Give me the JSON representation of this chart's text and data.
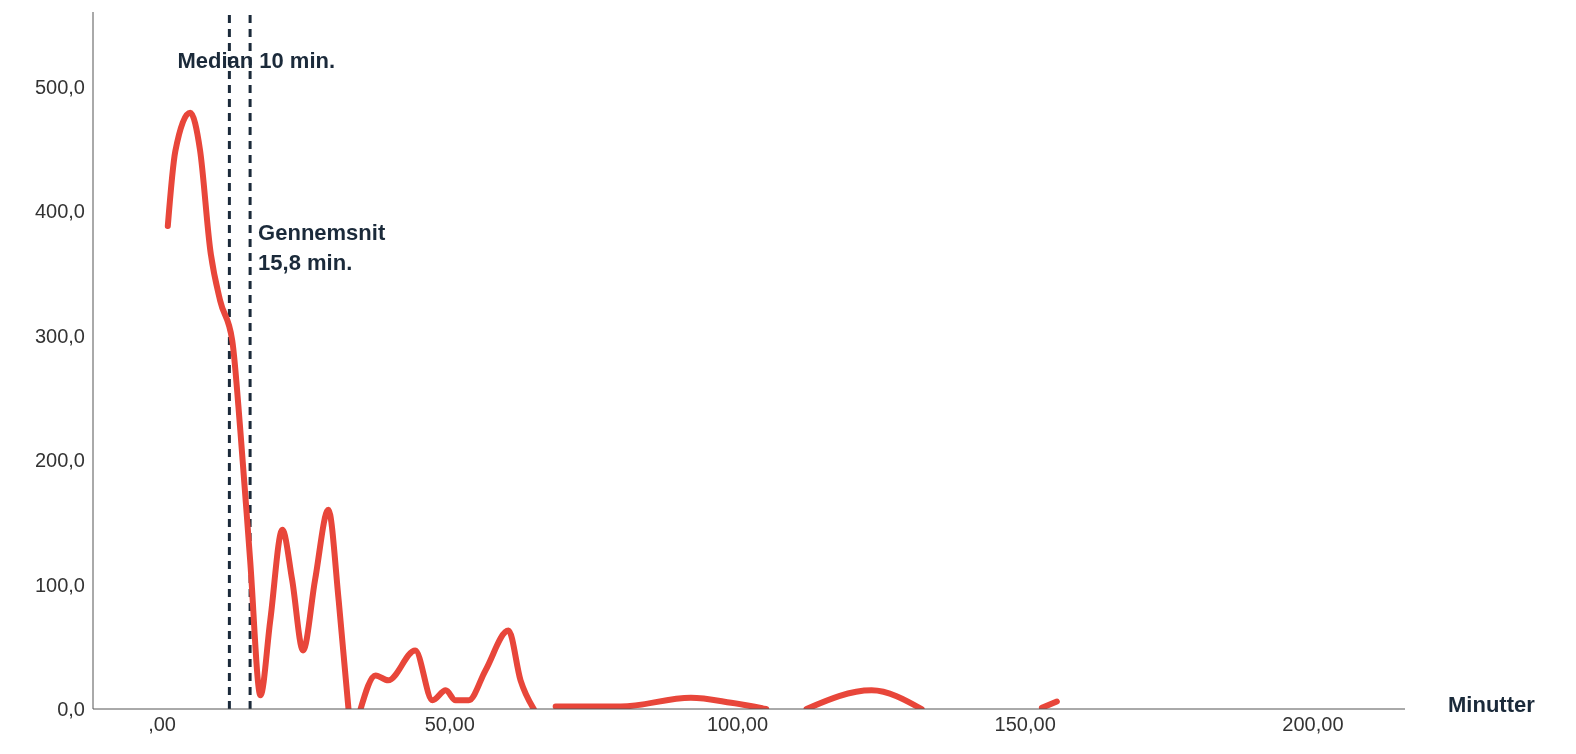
{
  "chart_data": {
    "type": "line",
    "xlabel": "Minutter",
    "x": [
      1.0,
      2.3,
      4.9,
      6.6,
      8.4,
      10.1,
      12.2,
      13.6,
      15.3,
      17.1,
      18.8,
      20.9,
      22.6,
      24.5,
      26.6,
      28.9,
      30.7,
      32.4,
      33.5,
      34.5,
      37.1,
      39.3,
      44,
      47,
      49.3,
      51,
      53.3,
      56.2,
      60.2,
      62.3,
      64.6,
      66.5,
      68.4,
      72.8,
      79.7,
      91.9,
      98.9,
      105,
      108.5,
      112,
      123.3,
      132,
      142,
      152.9,
      155.5
    ],
    "series": [
      {
        "color": "#e8463a",
        "values": [
          388,
          448,
          479,
          449,
          368,
          328,
          296,
          224,
          120,
          11,
          71,
          144,
          104,
          47,
          104,
          160,
          87,
          0,
          null,
          0,
          27,
          23,
          47,
          7,
          15,
          7,
          7,
          31,
          63,
          23,
          0,
          null,
          2,
          2,
          2,
          9,
          5,
          0,
          null,
          0,
          15,
          0,
          null,
          1,
          6
        ]
      }
    ],
    "xlim": [
      -12,
      216
    ],
    "ylim": [
      0,
      560
    ],
    "xticks": [
      {
        "value": 0,
        "label": ",00"
      },
      {
        "value": 50,
        "label": "50,00"
      },
      {
        "value": 100,
        "label": "100,00"
      },
      {
        "value": 150,
        "label": "150,00"
      },
      {
        "value": 200,
        "label": "200,00"
      }
    ],
    "yticks": [
      {
        "value": 0,
        "label": "0,0"
      },
      {
        "value": 100,
        "label": "100,0"
      },
      {
        "value": 200,
        "label": "200,0"
      },
      {
        "value": 300,
        "label": "300,0"
      },
      {
        "value": 400,
        "label": "400,0"
      },
      {
        "value": 500,
        "label": "500,0"
      }
    ],
    "ref_lines": [
      {
        "axis": "x",
        "value": 11.7,
        "label": "Median 10 min.",
        "line_style": "dashed",
        "color": "#1b2a3a"
      },
      {
        "axis": "x",
        "value": 15.3,
        "label": "Gennemsnit\n15,8 min.",
        "line_style": "dashed",
        "color": "#1b2a3a"
      }
    ],
    "grid": false,
    "legend": false,
    "marker": "none",
    "line_style": "solid"
  }
}
